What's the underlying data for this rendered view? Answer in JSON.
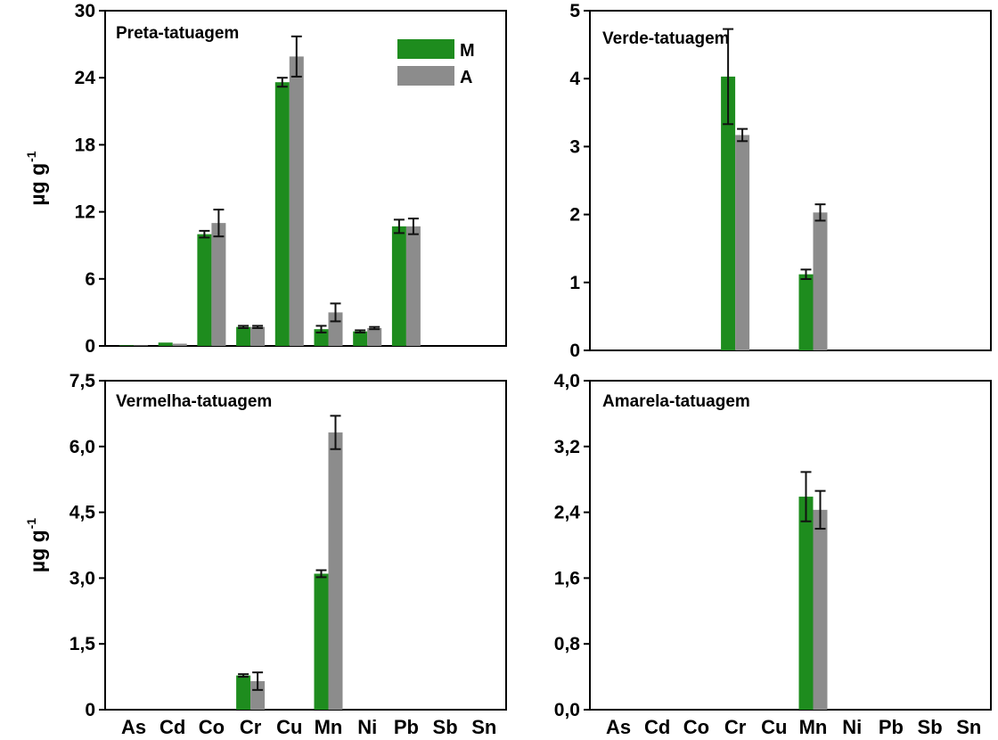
{
  "chart_data": [
    {
      "type": "bar",
      "title": "Preta-tatuagem",
      "ylabel": "µg g",
      "ylabel_superscript": "-1",
      "ylim": [
        0,
        30
      ],
      "yticks": [
        "0",
        "6",
        "12",
        "18",
        "24",
        "30"
      ],
      "categories": [
        "As",
        "Cd",
        "Co",
        "Cr",
        "Cu",
        "Mn",
        "Ni",
        "Pb",
        "Sb",
        "Sn"
      ],
      "show_x_tick_labels": false,
      "legend": {
        "position": "top-right",
        "entries": [
          "M",
          "A"
        ]
      },
      "series": [
        {
          "name": "M",
          "color": "#1e8c1e",
          "values": [
            0.05,
            0.3,
            10.0,
            1.7,
            23.6,
            1.5,
            1.3,
            10.7,
            0,
            0
          ],
          "errors": [
            0,
            0,
            0.3,
            0.1,
            0.4,
            0.3,
            0.1,
            0.6,
            0,
            0
          ]
        },
        {
          "name": "A",
          "color": "#8c8c8c",
          "values": [
            0.05,
            0.2,
            11.0,
            1.7,
            25.9,
            3.0,
            1.6,
            10.7,
            0,
            0
          ],
          "errors": [
            0,
            0,
            1.2,
            0.1,
            1.8,
            0.8,
            0.1,
            0.7,
            0,
            0
          ]
        }
      ]
    },
    {
      "type": "bar",
      "title": "Verde-tatuagem",
      "ylabel": "",
      "ylim": [
        0,
        5
      ],
      "yticks": [
        "0",
        "1",
        "2",
        "3",
        "4",
        "5"
      ],
      "categories": [
        "As",
        "Cd",
        "Co",
        "Cr",
        "Cu",
        "Mn",
        "Ni",
        "Pb",
        "Sb",
        "Sn"
      ],
      "show_x_tick_labels": false,
      "series": [
        {
          "name": "M",
          "color": "#1e8c1e",
          "values": [
            0,
            0,
            0,
            4.03,
            0,
            1.12,
            0,
            0,
            0,
            0
          ],
          "errors": [
            0,
            0,
            0,
            0.7,
            0,
            0.07,
            0,
            0,
            0,
            0
          ]
        },
        {
          "name": "A",
          "color": "#8c8c8c",
          "values": [
            0,
            0,
            0,
            3.17,
            0,
            2.03,
            0,
            0,
            0,
            0
          ],
          "errors": [
            0,
            0,
            0,
            0.09,
            0,
            0.12,
            0,
            0,
            0,
            0
          ]
        }
      ]
    },
    {
      "type": "bar",
      "title": "Vermelha-tatuagem",
      "ylabel": "µg g",
      "ylabel_superscript": "-1",
      "ylim": [
        0,
        7.5
      ],
      "yticks": [
        "0",
        "1,5",
        "3,0",
        "4,5",
        "6,0",
        "7,5"
      ],
      "categories": [
        "As",
        "Cd",
        "Co",
        "Cr",
        "Cu",
        "Mn",
        "Ni",
        "Pb",
        "Sb",
        "Sn"
      ],
      "show_x_tick_labels": true,
      "series": [
        {
          "name": "M",
          "color": "#1e8c1e",
          "values": [
            0,
            0,
            0,
            0.78,
            0,
            3.1,
            0,
            0,
            0,
            0
          ],
          "errors": [
            0,
            0,
            0,
            0.03,
            0,
            0.08,
            0,
            0,
            0,
            0
          ]
        },
        {
          "name": "A",
          "color": "#8c8c8c",
          "values": [
            0,
            0,
            0,
            0.65,
            0,
            6.32,
            0,
            0,
            0,
            0
          ],
          "errors": [
            0,
            0,
            0,
            0.2,
            0,
            0.38,
            0,
            0,
            0,
            0
          ]
        }
      ]
    },
    {
      "type": "bar",
      "title": "Amarela-tatuagem",
      "ylabel": "",
      "ylim": [
        0,
        4
      ],
      "yticks": [
        "0,0",
        "0,8",
        "1,6",
        "2,4",
        "3,2",
        "4,0"
      ],
      "categories": [
        "As",
        "Cd",
        "Co",
        "Cr",
        "Cu",
        "Mn",
        "Ni",
        "Pb",
        "Sb",
        "Sn"
      ],
      "show_x_tick_labels": true,
      "series": [
        {
          "name": "M",
          "color": "#1e8c1e",
          "values": [
            0,
            0,
            0,
            0,
            0,
            2.59,
            0,
            0,
            0,
            0
          ],
          "errors": [
            0,
            0,
            0,
            0,
            0,
            0.3,
            0,
            0,
            0,
            0
          ]
        },
        {
          "name": "A",
          "color": "#8c8c8c",
          "values": [
            0,
            0,
            0,
            0,
            0,
            2.43,
            0,
            0,
            0,
            0
          ],
          "errors": [
            0,
            0,
            0,
            0,
            0,
            0.23,
            0,
            0,
            0,
            0
          ]
        }
      ]
    }
  ]
}
